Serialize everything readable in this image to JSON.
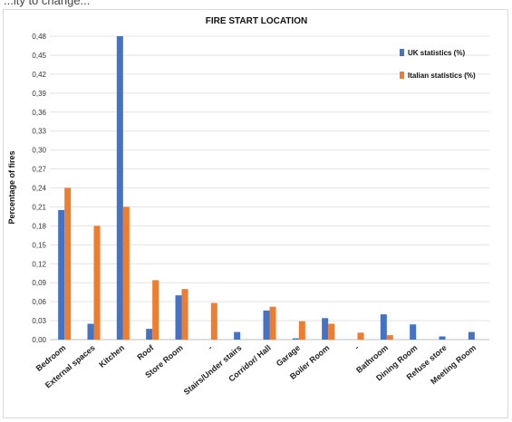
{
  "top_caption": "...ity to change...",
  "chart_data": {
    "type": "bar",
    "title": "FIRE START LOCATION",
    "xlabel": "",
    "ylabel": "Percentage of fires",
    "ylim": [
      0,
      0.48
    ],
    "yticks": [
      "0,00",
      "0,03",
      "0,06",
      "0,09",
      "0,12",
      "0,15",
      "0,18",
      "0,21",
      "0,24",
      "0,27",
      "0,30",
      "0,33",
      "0,36",
      "0,39",
      "0,42",
      "0,45",
      "0,48"
    ],
    "grid": true,
    "legend_position": "top-right",
    "categories": [
      "Bedroom",
      "External spaces",
      "Kitchen",
      "Roof",
      "Store Room",
      "-",
      "Stairs/Under stairs",
      "Corridor/ Hall",
      "Garage",
      "Boiler Room",
      "-",
      "Bathroom",
      "Dining Room",
      "Refuse store",
      "Meeting Room"
    ],
    "series": [
      {
        "name": "UK statistics (%)",
        "color": "#4472c4",
        "values": [
          0.205,
          0.025,
          0.48,
          0.017,
          0.07,
          0,
          0.012,
          0.046,
          0.002,
          0.034,
          0,
          0.04,
          0.024,
          0.005,
          0.012
        ]
      },
      {
        "name": "Italian statistics (%)",
        "color": "#ed7d31",
        "values": [
          0.24,
          0.18,
          0.21,
          0.094,
          0.08,
          0.058,
          0,
          0.052,
          0.029,
          0.025,
          0.011,
          0.007,
          0,
          0,
          0
        ]
      }
    ]
  }
}
